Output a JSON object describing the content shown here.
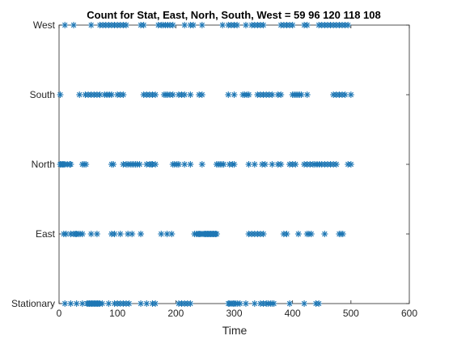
{
  "chart_data": {
    "type": "scatter",
    "title": "Count for Stat, East, Norh, South, West = 59   96  120  118  108",
    "xlabel": "Time",
    "ylabel": "",
    "xlim": [
      0,
      600
    ],
    "x_ticks": [
      0,
      100,
      200,
      300,
      400,
      500,
      600
    ],
    "categories": [
      "Stationary",
      "East",
      "North",
      "South",
      "West"
    ],
    "marker": "asterisk",
    "color": "#1f77b4",
    "grid": false,
    "series": [
      {
        "category": "Stationary",
        "x": [
          10,
          20,
          30,
          40,
          48,
          50,
          52,
          54,
          56,
          58,
          60,
          62,
          64,
          66,
          68,
          70,
          74,
          85,
          95,
          100,
          105,
          110,
          115,
          120,
          140,
          150,
          160,
          165,
          205,
          210,
          215,
          220,
          225,
          290,
          292,
          295,
          298,
          300,
          303,
          306,
          310,
          320,
          335,
          345,
          350,
          355,
          358,
          362,
          365,
          368,
          395,
          420,
          440,
          445
        ]
      },
      {
        "category": "East",
        "x": [
          8,
          12,
          20,
          25,
          28,
          30,
          33,
          36,
          40,
          55,
          65,
          90,
          95,
          105,
          118,
          125,
          140,
          175,
          185,
          193,
          232,
          235,
          238,
          240,
          242,
          245,
          248,
          250,
          252,
          254,
          256,
          258,
          260,
          262,
          264,
          266,
          268,
          270,
          325,
          330,
          335,
          340,
          345,
          350,
          385,
          390,
          410,
          425,
          428,
          432,
          455,
          480,
          483,
          486
        ]
      },
      {
        "category": "North",
        "x": [
          2,
          4,
          6,
          8,
          10,
          14,
          18,
          20,
          40,
          43,
          46,
          90,
          93,
          110,
          115,
          118,
          122,
          125,
          128,
          131,
          134,
          138,
          150,
          155,
          158,
          160,
          165,
          195,
          198,
          202,
          205,
          215,
          225,
          245,
          270,
          273,
          276,
          279,
          282,
          292,
          297,
          300,
          325,
          335,
          348,
          353,
          365,
          375,
          380,
          395,
          400,
          405,
          420,
          425,
          430,
          435,
          438,
          442,
          446,
          450,
          455,
          460,
          465,
          470,
          475,
          495,
          500
        ]
      },
      {
        "category": "South",
        "x": [
          2,
          35,
          45,
          50,
          55,
          60,
          65,
          70,
          78,
          82,
          86,
          90,
          100,
          105,
          110,
          145,
          150,
          155,
          160,
          165,
          180,
          183,
          186,
          190,
          195,
          205,
          210,
          215,
          225,
          240,
          245,
          290,
          300,
          315,
          318,
          322,
          325,
          340,
          345,
          350,
          355,
          360,
          365,
          375,
          380,
          400,
          403,
          406,
          409,
          412,
          415,
          425,
          470,
          475,
          480,
          485,
          490,
          500
        ]
      },
      {
        "category": "West",
        "x": [
          10,
          25,
          55,
          70,
          75,
          80,
          85,
          90,
          95,
          100,
          105,
          110,
          115,
          140,
          145,
          170,
          175,
          178,
          182,
          186,
          190,
          195,
          215,
          225,
          230,
          245,
          280,
          290,
          295,
          300,
          305,
          320,
          330,
          335,
          340,
          345,
          350,
          380,
          385,
          390,
          395,
          400,
          420,
          425,
          445,
          450,
          455,
          460,
          465,
          470,
          475,
          480,
          485,
          490,
          495
        ]
      }
    ]
  }
}
